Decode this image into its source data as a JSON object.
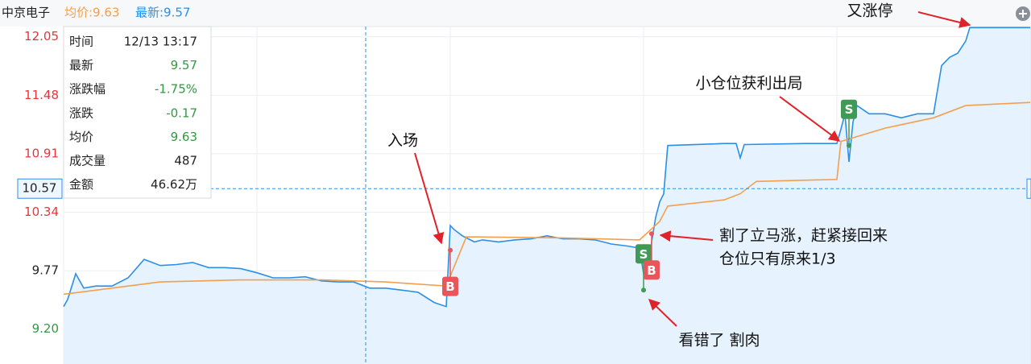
{
  "chart_data": {
    "type": "line",
    "header": {
      "name": "中京电子",
      "avg": "均价:9.63",
      "latest": "最新:9.57"
    },
    "xlim": [
      0,
      240
    ],
    "xticks": [
      0,
      48,
      96,
      144,
      192,
      240
    ],
    "ylim": [
      8.86,
      12.15
    ],
    "yticks": [
      {
        "value": 9.2,
        "label": "9.20"
      },
      9.77,
      10.34,
      10.91,
      11.48,
      12.05
    ],
    "ytick_colors": [
      "#2e9a3e",
      "#222222",
      "#e8333a",
      "#e8333a",
      "#e8333a",
      "#e8333a"
    ],
    "grid": true,
    "series": [
      {
        "name": "最新",
        "color": "#2b8fe8",
        "x": [
          0,
          1,
          3,
          5,
          8,
          12,
          16,
          20,
          24,
          28,
          32,
          36,
          40,
          44,
          48,
          52,
          56,
          60,
          64,
          68,
          72,
          76,
          80,
          84,
          88,
          92,
          95,
          96,
          97,
          99,
          102,
          104,
          108,
          112,
          116,
          120,
          124,
          128,
          132,
          136,
          140,
          143,
          144,
          145,
          146,
          147,
          148,
          149,
          150,
          164,
          167,
          168,
          169,
          184,
          192,
          193,
          194,
          195,
          196,
          197,
          200,
          204,
          208,
          212,
          216,
          218,
          220,
          222,
          224,
          225,
          240
        ],
        "values": [
          9.42,
          9.49,
          9.74,
          9.6,
          9.62,
          9.62,
          9.7,
          9.88,
          9.82,
          9.83,
          9.85,
          9.8,
          9.8,
          9.79,
          9.75,
          9.7,
          9.7,
          9.71,
          9.67,
          9.66,
          9.66,
          9.6,
          9.6,
          9.58,
          9.56,
          9.46,
          9.42,
          10.21,
          10.17,
          10.11,
          10.05,
          10.07,
          10.05,
          10.07,
          10.08,
          10.11,
          10.08,
          10.08,
          10.07,
          10.03,
          10.01,
          9.99,
          9.74,
          9.82,
          10.05,
          10.29,
          10.44,
          10.52,
          10.99,
          11.01,
          11.01,
          10.87,
          11.0,
          11.01,
          11.01,
          11.15,
          11.3,
          10.83,
          11.22,
          11.38,
          11.3,
          11.3,
          11.26,
          11.3,
          11.3,
          11.77,
          11.85,
          11.89,
          12.01,
          12.14,
          12.14
        ]
      },
      {
        "name": "均价",
        "color": "#f2a04e",
        "x": [
          0,
          8,
          24,
          44,
          64,
          80,
          95,
          100,
          124,
          143,
          148,
          150,
          164,
          168,
          172,
          192,
          193,
          204,
          216,
          224,
          240
        ],
        "values": [
          9.54,
          9.58,
          9.66,
          9.68,
          9.68,
          9.66,
          9.62,
          10.1,
          10.09,
          10.07,
          10.25,
          10.4,
          10.46,
          10.52,
          10.64,
          10.66,
          11.03,
          11.16,
          11.26,
          11.38,
          11.41
        ]
      }
    ],
    "trades": [
      {
        "label": "B",
        "x": 96,
        "value": 9.97,
        "color": "#e8555a"
      },
      {
        "label": "S",
        "x": 144,
        "value": 9.58,
        "color": "#3f9a55"
      },
      {
        "label": "B",
        "x": 146,
        "value": 10.13,
        "color": "#e8555a"
      },
      {
        "label": "S",
        "x": 195,
        "value": 10.99,
        "color": "#3f9a55"
      }
    ],
    "crosshair": {
      "x": 75,
      "value": 10.57
    },
    "tooltip": [
      [
        "时间",
        "12/13 13:17"
      ],
      [
        "最新",
        "9.57"
      ],
      [
        "涨跌幅",
        "-1.75%"
      ],
      [
        "涨跌",
        "-0.17"
      ],
      [
        "均价",
        "9.63"
      ],
      [
        "成交量",
        "487"
      ],
      [
        "金额",
        "46.62万"
      ]
    ],
    "tooltip_colors": [
      "#222222",
      "#2e9a3e",
      "#2e9a3e",
      "#2e9a3e",
      "#2e9a3e",
      "#222222",
      "#222222"
    ],
    "annotations": [
      "入场",
      "看错了  割肉",
      "割了立马涨，赶紧接回来",
      "仓位只有原来1/3",
      "小仓位获利出局",
      "又涨停"
    ]
  }
}
